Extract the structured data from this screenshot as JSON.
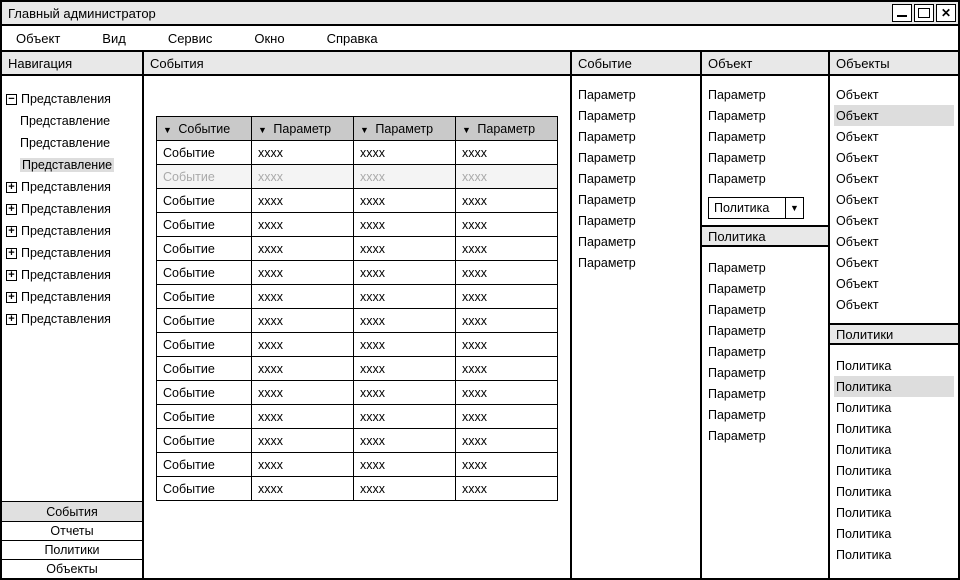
{
  "window": {
    "title": "Главный администратор"
  },
  "menu": {
    "items": [
      "Объект",
      "Вид",
      "Сервис",
      "Окно",
      "Справка"
    ]
  },
  "nav": {
    "header": "Навигация",
    "tree": [
      {
        "expander": "−",
        "label": "Представления",
        "indent": 0,
        "selected": false
      },
      {
        "expander": "",
        "label": "Представление",
        "indent": 1,
        "selected": false
      },
      {
        "expander": "",
        "label": "Представление",
        "indent": 1,
        "selected": false
      },
      {
        "expander": "",
        "label": "Представление",
        "indent": 1,
        "selected": true
      },
      {
        "expander": "+",
        "label": "Представления",
        "indent": 0,
        "selected": false
      },
      {
        "expander": "+",
        "label": "Представления",
        "indent": 0,
        "selected": false
      },
      {
        "expander": "+",
        "label": "Представления",
        "indent": 0,
        "selected": false
      },
      {
        "expander": "+",
        "label": "Представления",
        "indent": 0,
        "selected": false
      },
      {
        "expander": "+",
        "label": "Представления",
        "indent": 0,
        "selected": false
      },
      {
        "expander": "+",
        "label": "Представления",
        "indent": 0,
        "selected": false
      },
      {
        "expander": "+",
        "label": "Представления",
        "indent": 0,
        "selected": false
      }
    ],
    "tabs": [
      {
        "label": "События",
        "active": true
      },
      {
        "label": "Отчеты",
        "active": false
      },
      {
        "label": "Политики",
        "active": false
      },
      {
        "label": "Объекты",
        "active": false
      }
    ]
  },
  "events": {
    "header": "События",
    "columns": [
      "Событие",
      "Параметр",
      "Параметр",
      "Параметр"
    ],
    "rows": [
      {
        "c": [
          "Событие",
          "xxxx",
          "xxxx",
          "xxxx"
        ],
        "gray": false
      },
      {
        "c": [
          "Событие",
          "xxxx",
          "xxxx",
          "xxxx"
        ],
        "gray": true
      },
      {
        "c": [
          "Событие",
          "xxxx",
          "xxxx",
          "xxxx"
        ],
        "gray": false
      },
      {
        "c": [
          "Событие",
          "xxxx",
          "xxxx",
          "xxxx"
        ],
        "gray": false
      },
      {
        "c": [
          "Событие",
          "xxxx",
          "xxxx",
          "xxxx"
        ],
        "gray": false
      },
      {
        "c": [
          "Событие",
          "xxxx",
          "xxxx",
          "xxxx"
        ],
        "gray": false
      },
      {
        "c": [
          "Событие",
          "xxxx",
          "xxxx",
          "xxxx"
        ],
        "gray": false
      },
      {
        "c": [
          "Событие",
          "xxxx",
          "xxxx",
          "xxxx"
        ],
        "gray": false
      },
      {
        "c": [
          "Событие",
          "xxxx",
          "xxxx",
          "xxxx"
        ],
        "gray": false
      },
      {
        "c": [
          "Событие",
          "xxxx",
          "xxxx",
          "xxxx"
        ],
        "gray": false
      },
      {
        "c": [
          "Событие",
          "xxxx",
          "xxxx",
          "xxxx"
        ],
        "gray": false
      },
      {
        "c": [
          "Событие",
          "xxxx",
          "xxxx",
          "xxxx"
        ],
        "gray": false
      },
      {
        "c": [
          "Событие",
          "xxxx",
          "xxxx",
          "xxxx"
        ],
        "gray": false
      },
      {
        "c": [
          "Событие",
          "xxxx",
          "xxxx",
          "xxxx"
        ],
        "gray": false
      },
      {
        "c": [
          "Событие",
          "xxxx",
          "xxxx",
          "xxxx"
        ],
        "gray": false
      }
    ]
  },
  "event_panel": {
    "header": "Событие",
    "items": [
      "Параметр",
      "Параметр",
      "Параметр",
      "Параметр",
      "Параметр",
      "Параметр",
      "Параметр",
      "Параметр",
      "Параметр"
    ]
  },
  "object_panel": {
    "header": "Объект",
    "items": [
      "Параметр",
      "Параметр",
      "Параметр",
      "Параметр",
      "Параметр"
    ],
    "dropdown": "Политика",
    "policy_header": "Политика",
    "policy_items": [
      "Параметр",
      "Параметр",
      "Параметр",
      "Параметр",
      "Параметр",
      "Параметр",
      "Параметр",
      "Параметр",
      "Параметр"
    ]
  },
  "objects_panel": {
    "header": "Объекты",
    "items": [
      {
        "label": "Объект",
        "sel": false
      },
      {
        "label": "Объект",
        "sel": true
      },
      {
        "label": "Объект",
        "sel": false
      },
      {
        "label": "Объект",
        "sel": false
      },
      {
        "label": "Объект",
        "sel": false
      },
      {
        "label": "Объект",
        "sel": false
      },
      {
        "label": "Объект",
        "sel": false
      },
      {
        "label": "Объект",
        "sel": false
      },
      {
        "label": "Объект",
        "sel": false
      },
      {
        "label": "Объект",
        "sel": false
      },
      {
        "label": "Объект",
        "sel": false
      }
    ],
    "policies_header": "Политики",
    "policies": [
      {
        "label": "Политика",
        "sel": false
      },
      {
        "label": "Политика",
        "sel": true
      },
      {
        "label": "Политика",
        "sel": false
      },
      {
        "label": "Политика",
        "sel": false
      },
      {
        "label": "Политика",
        "sel": false
      },
      {
        "label": "Политика",
        "sel": false
      },
      {
        "label": "Политика",
        "sel": false
      },
      {
        "label": "Политика",
        "sel": false
      },
      {
        "label": "Политика",
        "sel": false
      },
      {
        "label": "Политика",
        "sel": false
      }
    ]
  }
}
